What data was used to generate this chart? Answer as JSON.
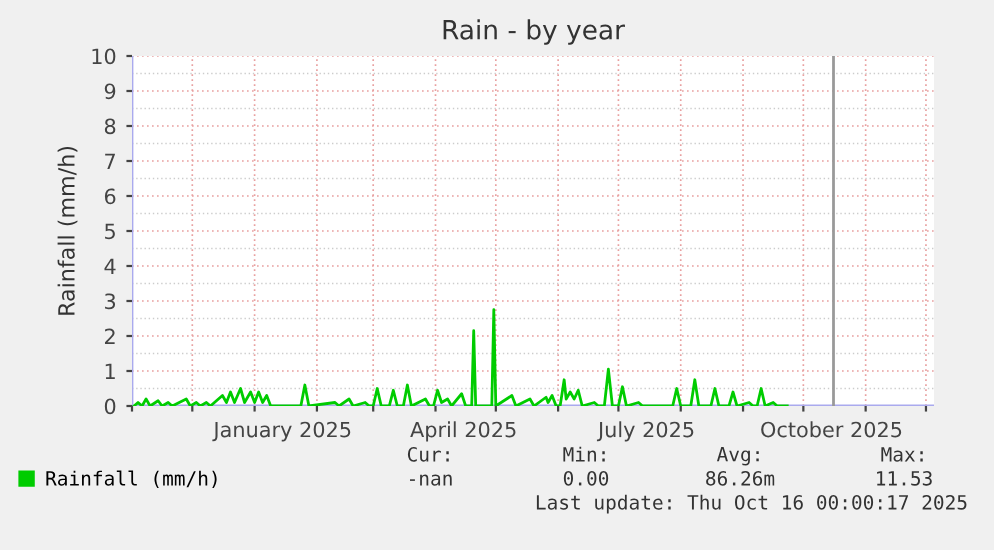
{
  "chart_data": {
    "type": "line",
    "title": "Rain - by year",
    "ylabel": "Rainfall (mm/h)",
    "x": [
      "2024-11-02",
      "2024-11-04",
      "2024-11-06",
      "2024-11-08",
      "2024-11-10",
      "2024-11-14",
      "2024-11-16",
      "2024-11-19",
      "2024-11-21",
      "2024-11-28",
      "2024-11-30",
      "2024-12-03",
      "2024-12-05",
      "2024-12-08",
      "2024-12-10",
      "2024-12-16",
      "2024-12-18",
      "2024-12-20",
      "2024-12-22",
      "2024-12-25",
      "2024-12-27",
      "2024-12-30",
      "2025-01-01",
      "2025-01-03",
      "2025-01-05",
      "2025-01-07",
      "2025-01-09",
      "2025-01-24",
      "2025-01-26",
      "2025-01-28",
      "2025-02-10",
      "2025-02-12",
      "2025-02-17",
      "2025-02-19",
      "2025-02-25",
      "2025-02-27",
      "2025-03-01",
      "2025-03-03",
      "2025-03-05",
      "2025-03-09",
      "2025-03-11",
      "2025-03-13",
      "2025-03-16",
      "2025-03-18",
      "2025-03-20",
      "2025-03-27",
      "2025-03-29",
      "2025-03-31",
      "2025-04-02",
      "2025-04-04",
      "2025-04-07",
      "2025-04-09",
      "2025-04-14",
      "2025-04-16",
      "2025-04-19",
      "2025-04-20",
      "2025-04-21",
      "2025-04-29",
      "2025-04-30",
      "2025-05-01",
      "2025-05-09",
      "2025-05-11",
      "2025-05-18",
      "2025-05-20",
      "2025-05-26",
      "2025-05-27",
      "2025-05-29",
      "2025-05-31",
      "2025-06-02",
      "2025-06-04",
      "2025-06-05",
      "2025-06-07",
      "2025-06-09",
      "2025-06-11",
      "2025-06-13",
      "2025-06-19",
      "2025-06-21",
      "2025-06-24",
      "2025-06-26",
      "2025-06-28",
      "2025-07-01",
      "2025-07-03",
      "2025-07-05",
      "2025-07-11",
      "2025-07-13",
      "2025-07-28",
      "2025-07-30",
      "2025-08-01",
      "2025-08-06",
      "2025-08-08",
      "2025-08-10",
      "2025-08-16",
      "2025-08-18",
      "2025-08-20",
      "2025-08-25",
      "2025-08-27",
      "2025-08-29",
      "2025-09-04",
      "2025-09-06",
      "2025-09-08",
      "2025-09-10",
      "2025-09-12",
      "2025-09-16",
      "2025-09-18",
      "2025-09-23"
    ],
    "series": [
      {
        "name": "Rainfall (mm/h)",
        "color": "#00cc00",
        "values": [
          0,
          0.1,
          0,
          0.2,
          0,
          0.15,
          0,
          0.1,
          0,
          0.2,
          0,
          0.1,
          0,
          0.1,
          0,
          0.3,
          0.1,
          0.4,
          0.1,
          0.5,
          0.1,
          0.4,
          0.1,
          0.4,
          0.1,
          0.3,
          0,
          0,
          0.6,
          0,
          0.1,
          0,
          0.2,
          0,
          0.1,
          0,
          0,
          0.5,
          0,
          0,
          0.45,
          0,
          0,
          0.6,
          0,
          0.2,
          0,
          0,
          0.45,
          0.1,
          0.2,
          0,
          0.35,
          0,
          0,
          2.15,
          0,
          0,
          2.75,
          0,
          0.3,
          0,
          0.2,
          0,
          0.25,
          0.1,
          0.3,
          0,
          0,
          0.75,
          0.2,
          0.4,
          0.2,
          0.45,
          0,
          0.1,
          0,
          0,
          1.05,
          0,
          0,
          0.55,
          0,
          0.1,
          0,
          0,
          0.5,
          0,
          0,
          0.75,
          0,
          0,
          0.5,
          0,
          0,
          0.4,
          0,
          0.1,
          0,
          0,
          0.5,
          0,
          0.1,
          0,
          0
        ]
      }
    ],
    "xlim": [
      "2024-11-01",
      "2025-12-05"
    ],
    "xticks": [
      {
        "value": "2024-11-01",
        "label": null
      },
      {
        "value": "2024-12-01",
        "label": null
      },
      {
        "value": "2025-01-01",
        "label": null
      },
      {
        "value": "2025-01-15",
        "label": "January 2025"
      },
      {
        "value": "2025-02-01",
        "label": null
      },
      {
        "value": "2025-03-01",
        "label": null
      },
      {
        "value": "2025-04-01",
        "label": null
      },
      {
        "value": "2025-04-15",
        "label": "April 2025"
      },
      {
        "value": "2025-05-01",
        "label": null
      },
      {
        "value": "2025-06-01",
        "label": null
      },
      {
        "value": "2025-07-01",
        "label": null
      },
      {
        "value": "2025-07-15",
        "label": "July 2025"
      },
      {
        "value": "2025-08-01",
        "label": null
      },
      {
        "value": "2025-09-01",
        "label": null
      },
      {
        "value": "2025-10-01",
        "label": null
      },
      {
        "value": "2025-10-15",
        "label": "October 2025"
      },
      {
        "value": "2025-11-01",
        "label": null
      },
      {
        "value": "2025-12-01",
        "label": null
      }
    ],
    "ylim": [
      0,
      10
    ],
    "yticks": [
      0,
      1,
      2,
      3,
      4,
      5,
      6,
      7,
      8,
      9,
      10
    ],
    "ref_lines": [
      {
        "axis": "x",
        "value": "2025-10-16",
        "color": "#999999"
      }
    ],
    "grid": true,
    "legend": "bottom",
    "marker": "none",
    "line_style": "solid",
    "annotations": [
      "Cur:",
      "Min:",
      "Avg:",
      "Max:",
      "-nan",
      "0.00",
      "86.26m",
      "11.53",
      "Last update: Thu Oct 16 00:00:17 2025"
    ]
  }
}
